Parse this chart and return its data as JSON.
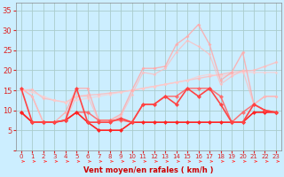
{
  "xlabel": "Vent moyen/en rafales ( km/h )",
  "background_color": "#cceeff",
  "grid_color": "#aacccc",
  "x": [
    0,
    1,
    2,
    3,
    4,
    5,
    6,
    7,
    8,
    9,
    10,
    11,
    12,
    13,
    14,
    15,
    16,
    17,
    18,
    19,
    20,
    21,
    22,
    23
  ],
  "ylim": [
    0,
    37
  ],
  "xlim": [
    -0.5,
    23.5
  ],
  "yticks": [
    0,
    5,
    10,
    15,
    20,
    25,
    30,
    35
  ],
  "series": [
    {
      "y": [
        15.0,
        15.2,
        13.0,
        12.5,
        12.0,
        13.5,
        13.8,
        14.0,
        14.3,
        14.6,
        15.0,
        15.5,
        16.0,
        16.5,
        17.0,
        17.5,
        18.0,
        18.5,
        19.0,
        19.5,
        19.8,
        20.0,
        21.0,
        22.0
      ],
      "color": "#ffbbbb",
      "lw": 1.0,
      "marker": "D",
      "ms": 2.0,
      "alpha": 0.8
    },
    {
      "y": [
        15.5,
        14.5,
        13.5,
        12.5,
        12.0,
        12.5,
        13.0,
        13.5,
        14.0,
        14.5,
        15.0,
        15.5,
        16.0,
        16.5,
        17.0,
        17.5,
        18.5,
        19.0,
        18.5,
        19.0,
        19.5,
        19.5,
        19.5,
        19.5
      ],
      "color": "#ffcccc",
      "lw": 0.9,
      "marker": "D",
      "ms": 1.8,
      "alpha": 0.7
    },
    {
      "y": [
        15.5,
        13.5,
        7.0,
        7.0,
        9.5,
        15.5,
        15.5,
        7.5,
        7.5,
        9.0,
        15.0,
        20.5,
        20.5,
        21.0,
        26.5,
        28.5,
        31.5,
        26.5,
        17.5,
        19.5,
        24.5,
        11.5,
        13.5,
        13.5
      ],
      "color": "#ffaaaa",
      "lw": 1.0,
      "marker": "D",
      "ms": 2.0,
      "alpha": 0.85
    },
    {
      "y": [
        15.5,
        13.5,
        7.0,
        7.0,
        7.5,
        13.5,
        13.5,
        7.5,
        7.5,
        8.5,
        14.0,
        19.5,
        19.0,
        20.5,
        24.5,
        27.5,
        26.0,
        24.0,
        16.5,
        18.5,
        20.0,
        11.5,
        13.5,
        13.5
      ],
      "color": "#ffbbbb",
      "lw": 0.9,
      "marker": "D",
      "ms": 1.8,
      "alpha": 0.75
    },
    {
      "y": [
        9.5,
        7.0,
        7.0,
        7.0,
        7.5,
        9.5,
        9.5,
        7.5,
        7.5,
        7.5,
        7.0,
        11.5,
        11.5,
        13.5,
        13.5,
        15.5,
        15.5,
        15.5,
        13.5,
        7.0,
        9.5,
        11.5,
        10.0,
        9.5
      ],
      "color": "#ff6666",
      "lw": 1.1,
      "marker": "D",
      "ms": 2.5,
      "alpha": 0.9
    },
    {
      "y": [
        9.5,
        7.0,
        7.0,
        7.0,
        7.5,
        9.5,
        7.0,
        5.0,
        5.0,
        5.0,
        7.0,
        7.0,
        7.0,
        7.0,
        7.0,
        7.0,
        7.0,
        7.0,
        7.0,
        7.0,
        7.0,
        9.5,
        9.5,
        9.5
      ],
      "color": "#ff2222",
      "lw": 1.2,
      "marker": "D",
      "ms": 2.5,
      "alpha": 1.0
    },
    {
      "y": [
        15.5,
        7.0,
        7.0,
        7.0,
        7.5,
        15.5,
        7.0,
        7.0,
        7.0,
        8.0,
        7.0,
        11.5,
        11.5,
        13.5,
        11.5,
        15.5,
        13.5,
        15.5,
        11.5,
        7.0,
        7.0,
        11.5,
        10.0,
        9.5
      ],
      "color": "#ff4444",
      "lw": 1.2,
      "marker": "D",
      "ms": 2.5,
      "alpha": 1.0
    }
  ],
  "arrow_color": "#ff4444",
  "tick_color": "#dd2222",
  "label_color": "#cc0000"
}
